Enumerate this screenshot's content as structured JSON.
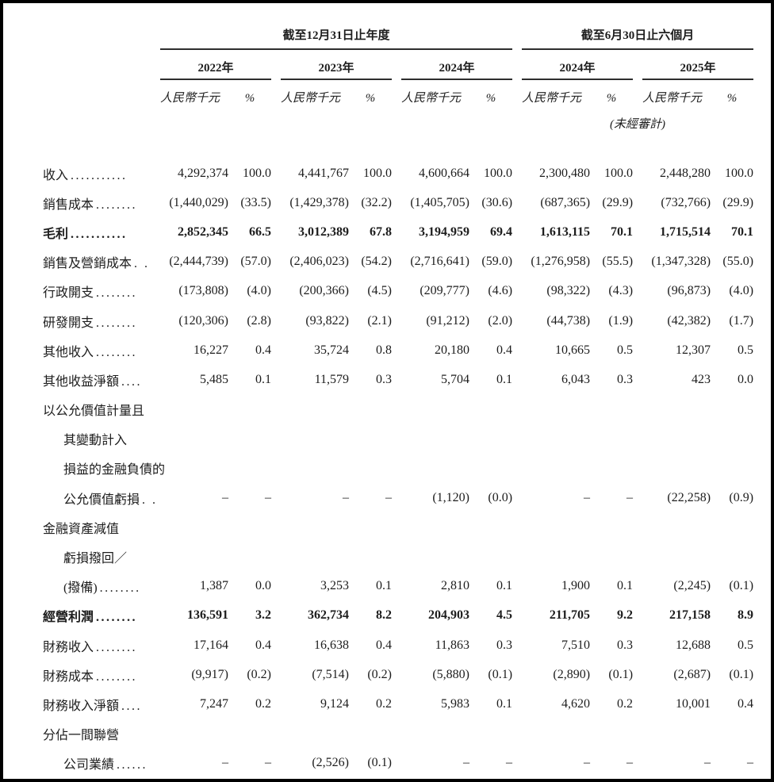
{
  "colors": {
    "text": "#1d1d1d",
    "rule_line": "#2e2e2e",
    "background": "#ffffff",
    "frame": "#000000"
  },
  "table": {
    "periods": [
      "截至12月31日止年度",
      "截至6月30日止六個月"
    ],
    "years": [
      "2022年",
      "2023年",
      "2024年",
      "2024年",
      "2025年"
    ],
    "unit_label": "人民幣千元",
    "pct_label": "%",
    "unaudited_note": "(未經審計)",
    "rows": [
      {
        "label": "收入",
        "dots": "...........",
        "indent": false,
        "bold": false,
        "values": [
          "4,292,374",
          "100.0",
          "4,441,767",
          "100.0",
          "4,600,664",
          "100.0",
          "2,300,480",
          "100.0",
          "2,448,280",
          "100.0"
        ]
      },
      {
        "label": "銷售成本",
        "dots": "........",
        "indent": false,
        "bold": false,
        "values": [
          "(1,440,029)",
          "(33.5)",
          "(1,429,378)",
          "(32.2)",
          "(1,405,705)",
          "(30.6)",
          "(687,365)",
          "(29.9)",
          "(732,766)",
          "(29.9)"
        ]
      },
      {
        "label": "毛利",
        "dots": "...........",
        "indent": false,
        "bold": true,
        "values": [
          "2,852,345",
          "66.5",
          "3,012,389",
          "67.8",
          "3,194,959",
          "69.4",
          "1,613,115",
          "70.1",
          "1,715,514",
          "70.1"
        ]
      },
      {
        "label": "銷售及營銷成本",
        "dots": ". .",
        "indent": false,
        "bold": false,
        "values": [
          "(2,444,739)",
          "(57.0)",
          "(2,406,023)",
          "(54.2)",
          "(2,716,641)",
          "(59.0)",
          "(1,276,958)",
          "(55.5)",
          "(1,347,328)",
          "(55.0)"
        ]
      },
      {
        "label": "行政開支",
        "dots": "........",
        "indent": false,
        "bold": false,
        "values": [
          "(173,808)",
          "(4.0)",
          "(200,366)",
          "(4.5)",
          "(209,777)",
          "(4.6)",
          "(98,322)",
          "(4.3)",
          "(96,873)",
          "(4.0)"
        ]
      },
      {
        "label": "研發開支",
        "dots": "........",
        "indent": false,
        "bold": false,
        "values": [
          "(120,306)",
          "(2.8)",
          "(93,822)",
          "(2.1)",
          "(91,212)",
          "(2.0)",
          "(44,738)",
          "(1.9)",
          "(42,382)",
          "(1.7)"
        ]
      },
      {
        "label": "其他收入",
        "dots": "........",
        "indent": false,
        "bold": false,
        "values": [
          "16,227",
          "0.4",
          "35,724",
          "0.8",
          "20,180",
          "0.4",
          "10,665",
          "0.5",
          "12,307",
          "0.5"
        ]
      },
      {
        "label": "其他收益淨額",
        "dots": "....",
        "indent": false,
        "bold": false,
        "values": [
          "5,485",
          "0.1",
          "11,579",
          "0.3",
          "5,704",
          "0.1",
          "6,043",
          "0.3",
          "423",
          "0.0"
        ]
      },
      {
        "label": "以公允價值計量且",
        "dots": "",
        "indent": false,
        "bold": false,
        "values": null
      },
      {
        "label": "其變動計入",
        "dots": "",
        "indent": true,
        "bold": false,
        "values": null
      },
      {
        "label": "損益的金融負債的",
        "dots": "",
        "indent": true,
        "bold": false,
        "values": null
      },
      {
        "label": "公允價值虧損",
        "dots": ". .",
        "indent": true,
        "bold": false,
        "values": [
          "–",
          "–",
          "–",
          "–",
          "(1,120)",
          "(0.0)",
          "–",
          "–",
          "(22,258)",
          "(0.9)"
        ]
      },
      {
        "label": "金融資產減值",
        "dots": "",
        "indent": false,
        "bold": false,
        "values": null
      },
      {
        "label": "虧損撥回／",
        "dots": "",
        "indent": true,
        "bold": false,
        "values": null
      },
      {
        "label": "(撥備)",
        "dots": "........",
        "indent": true,
        "bold": false,
        "values": [
          "1,387",
          "0.0",
          "3,253",
          "0.1",
          "2,810",
          "0.1",
          "1,900",
          "0.1",
          "(2,245)",
          "(0.1)"
        ]
      },
      {
        "label": "經營利潤",
        "dots": "........",
        "indent": false,
        "bold": true,
        "values": [
          "136,591",
          "3.2",
          "362,734",
          "8.2",
          "204,903",
          "4.5",
          "211,705",
          "9.2",
          "217,158",
          "8.9"
        ]
      },
      {
        "label": "財務收入",
        "dots": "........",
        "indent": false,
        "bold": false,
        "values": [
          "17,164",
          "0.4",
          "16,638",
          "0.4",
          "11,863",
          "0.3",
          "7,510",
          "0.3",
          "12,688",
          "0.5"
        ]
      },
      {
        "label": "財務成本",
        "dots": "........",
        "indent": false,
        "bold": false,
        "values": [
          "(9,917)",
          "(0.2)",
          "(7,514)",
          "(0.2)",
          "(5,880)",
          "(0.1)",
          "(2,890)",
          "(0.1)",
          "(2,687)",
          "(0.1)"
        ]
      },
      {
        "label": "財務收入淨額",
        "dots": "....",
        "indent": false,
        "bold": false,
        "values": [
          "7,247",
          "0.2",
          "9,124",
          "0.2",
          "5,983",
          "0.1",
          "4,620",
          "0.2",
          "10,001",
          "0.4"
        ]
      },
      {
        "label": "分佔一間聯營",
        "dots": "",
        "indent": false,
        "bold": false,
        "values": null
      },
      {
        "label": "公司業績",
        "dots": "......",
        "indent": true,
        "bold": false,
        "values": [
          "–",
          "–",
          "(2,526)",
          "(0.1)",
          "–",
          "–",
          "–",
          "–",
          "–",
          "–"
        ]
      }
    ]
  }
}
